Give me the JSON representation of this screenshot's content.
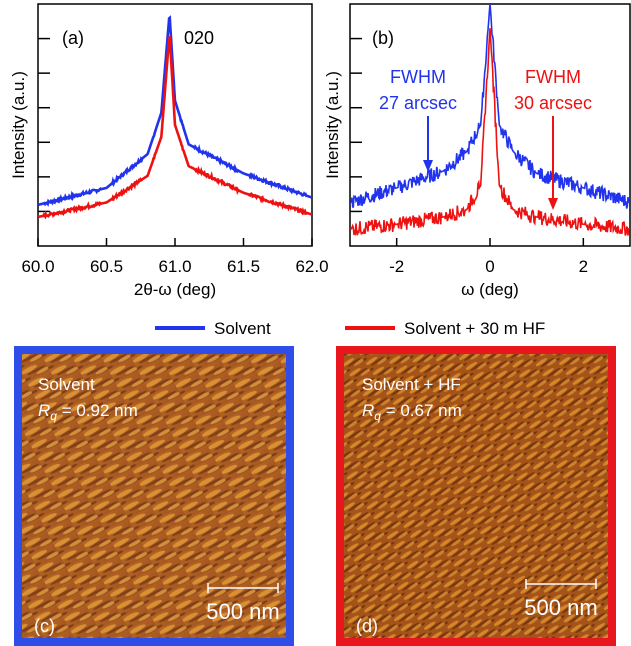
{
  "panels": {
    "a": {
      "letter": "(a)"
    },
    "b": {
      "letter": "(b)"
    },
    "c": {
      "letter": "(c)",
      "sample": "Solvent",
      "rq_symbol": "R",
      "rq_sub": "q",
      "rq_value": " = 0.92 nm",
      "scale_bar": "500 nm",
      "border_color": "#2f4ee8"
    },
    "d": {
      "letter": "(d)",
      "sample": "Solvent + HF",
      "rq_symbol": "R",
      "rq_sub": "q",
      "rq_value": " = 0.67 nm",
      "scale_bar": "500 nm",
      "border_color": "#e8171e"
    }
  },
  "legend": [
    {
      "label": "Solvent",
      "color": "#2233ee"
    },
    {
      "label": "Solvent + 30 m HF",
      "color": "#ee1111"
    }
  ],
  "chart_data": [
    {
      "type": "line",
      "panel": "(a)",
      "xlabel": "2θ-ω (deg)",
      "ylabel": "Intensity (a.u.)",
      "xlim": [
        60.0,
        62.0
      ],
      "x_tick_labels": [
        "60.0",
        "60.5",
        "61.0",
        "61.5",
        "62.0"
      ],
      "y_tick_count": 6,
      "y_scale": "log",
      "annotation": "020",
      "peak_position": 60.96,
      "series": [
        {
          "name": "Solvent",
          "color": "#2233ee",
          "x": [
            60.0,
            60.5,
            60.8,
            60.9,
            60.96,
            61.0,
            61.1,
            61.5,
            62.0
          ],
          "y": [
            0.17,
            0.24,
            0.38,
            0.55,
            0.96,
            0.6,
            0.42,
            0.3,
            0.2
          ]
        },
        {
          "name": "Solvent + 30 m HF",
          "color": "#ee1111",
          "x": [
            60.0,
            60.5,
            60.8,
            60.9,
            60.96,
            61.0,
            61.1,
            61.5,
            62.0
          ],
          "y": [
            0.12,
            0.18,
            0.29,
            0.45,
            0.88,
            0.5,
            0.33,
            0.22,
            0.13
          ]
        }
      ]
    },
    {
      "type": "line",
      "panel": "(b)",
      "xlabel": "ω (deg)",
      "ylabel": "Intensity (a.u.)",
      "xlim": [
        -3.0,
        3.0
      ],
      "x_tick_labels": [
        "-2",
        "0",
        "2"
      ],
      "y_tick_count": 6,
      "y_scale": "log",
      "series": [
        {
          "name": "Solvent",
          "color": "#2233ee",
          "fwhm_label": "FWHM",
          "fwhm_value": "27 arcsec",
          "x": [
            -3.0,
            -2.0,
            -1.0,
            -0.5,
            -0.2,
            0.0,
            0.2,
            0.5,
            1.0,
            2.0,
            3.0
          ],
          "y": [
            0.18,
            0.24,
            0.31,
            0.39,
            0.5,
            1.0,
            0.5,
            0.39,
            0.3,
            0.24,
            0.18
          ]
        },
        {
          "name": "Solvent + 30 m HF",
          "color": "#ee1111",
          "fwhm_label": "FWHM",
          "fwhm_value": "30 arcsec",
          "x": [
            -3.0,
            -2.0,
            -1.0,
            -0.5,
            -0.2,
            0.0,
            0.2,
            0.5,
            1.0,
            2.0,
            3.0
          ],
          "y": [
            0.07,
            0.09,
            0.12,
            0.15,
            0.25,
            0.9,
            0.25,
            0.15,
            0.12,
            0.09,
            0.07
          ]
        }
      ]
    }
  ]
}
